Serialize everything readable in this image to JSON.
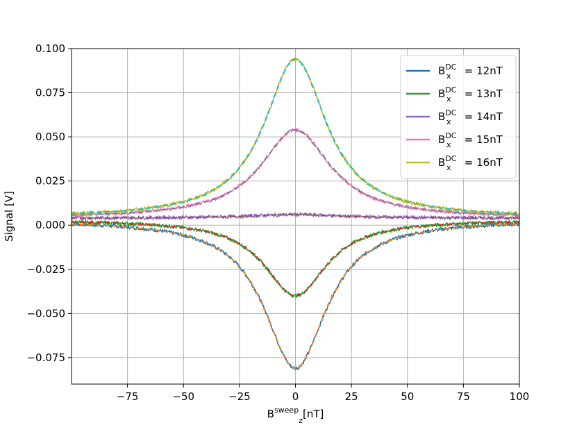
{
  "chart_data": {
    "type": "line",
    "xlabel": {
      "base": "B",
      "sub": "z",
      "sup": "sweep",
      "unit": "[nT]"
    },
    "ylabel": "Signal [V]",
    "xlim": [
      -100,
      100
    ],
    "ylim": [
      -0.09,
      0.1
    ],
    "xticks": [
      -75,
      -50,
      -25,
      0,
      25,
      50,
      75,
      100
    ],
    "xtick_labels": [
      "−75",
      "−50",
      "−25",
      "0",
      "25",
      "50",
      "75",
      "100"
    ],
    "yticks": [
      0.1,
      0.075,
      0.05,
      0.025,
      0.0,
      -0.025,
      -0.05,
      -0.075
    ],
    "ytick_labels": [
      "0.100",
      "0.075",
      "0.050",
      "0.025",
      "0.000",
      "−0.025",
      "−0.050",
      "−0.075"
    ],
    "grid": true,
    "legend_position": "top-right",
    "series": [
      {
        "name": "12nT",
        "legend": {
          "base": "B",
          "sub": "x",
          "sup": "DC",
          "eq": " = 12nT"
        },
        "color": "#1f77b4",
        "fit_color": "#ff7f0e",
        "offset": 0.003,
        "amplitude": -0.084,
        "width": 17,
        "noise": 0.001
      },
      {
        "name": "13nT",
        "legend": {
          "base": "B",
          "sub": "x",
          "sup": "DC",
          "eq": " = 13nT"
        },
        "color": "#2ca02c",
        "fit_color": "#d62728",
        "offset": 0.003,
        "amplitude": -0.043,
        "width": 17,
        "noise": 0.001
      },
      {
        "name": "14nT",
        "legend": {
          "base": "B",
          "sub": "x",
          "sup": "DC",
          "eq": " = 14nT"
        },
        "color": "#9467bd",
        "fit_color": "#8c564b",
        "offset": 0.004,
        "amplitude": 0.002,
        "width": 25,
        "noise": 0.001
      },
      {
        "name": "15nT",
        "legend": {
          "base": "B",
          "sub": "x",
          "sup": "DC",
          "eq": " = 15nT"
        },
        "color": "#e377c2",
        "fit_color": "#7f7f7f",
        "offset": 0.004,
        "amplitude": 0.05,
        "width": 19,
        "noise": 0.001
      },
      {
        "name": "16nT",
        "legend": {
          "base": "B",
          "sub": "x",
          "sup": "DC",
          "eq": " = 16nT"
        },
        "color": "#bcbd22",
        "fit_color": "#17becf",
        "offset": 0.004,
        "amplitude": 0.09,
        "width": 17,
        "noise": 0.001
      }
    ]
  }
}
